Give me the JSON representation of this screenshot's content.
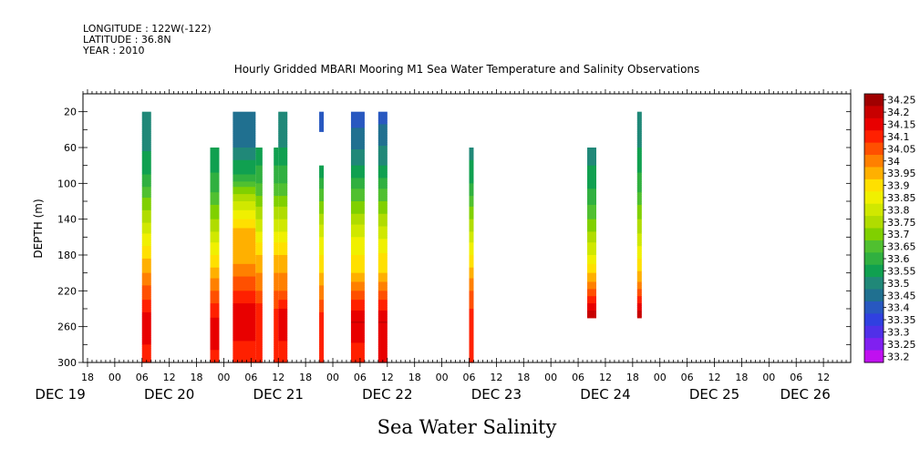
{
  "header": {
    "longitude": "LONGITUDE : 122W(-122)",
    "latitude": "LATITUDE : 36.8N",
    "year": "YEAR : 2010"
  },
  "chart_data": {
    "type": "heatmap",
    "title": "Hourly Gridded MBARI Mooring M1 Sea Water Temperature and Salinity Observations",
    "xlabel": "Sea Water Salinity",
    "ylabel": "DEPTH (m)",
    "x_hour_ticks": [
      {
        "hour": 18,
        "label": "18"
      },
      {
        "hour": 24,
        "label": "00"
      },
      {
        "hour": 30,
        "label": "06"
      },
      {
        "hour": 36,
        "label": "12"
      },
      {
        "hour": 42,
        "label": "18"
      },
      {
        "hour": 48,
        "label": "00"
      },
      {
        "hour": 54,
        "label": "06"
      },
      {
        "hour": 60,
        "label": "12"
      },
      {
        "hour": 66,
        "label": "18"
      },
      {
        "hour": 72,
        "label": "00"
      },
      {
        "hour": 78,
        "label": "06"
      },
      {
        "hour": 84,
        "label": "12"
      },
      {
        "hour": 90,
        "label": "18"
      },
      {
        "hour": 96,
        "label": "00"
      },
      {
        "hour": 102,
        "label": "06"
      },
      {
        "hour": 108,
        "label": "12"
      },
      {
        "hour": 114,
        "label": "18"
      },
      {
        "hour": 120,
        "label": "00"
      },
      {
        "hour": 126,
        "label": "06"
      },
      {
        "hour": 132,
        "label": "12"
      },
      {
        "hour": 138,
        "label": "18"
      },
      {
        "hour": 144,
        "label": "00"
      },
      {
        "hour": 150,
        "label": "06"
      },
      {
        "hour": 156,
        "label": "12"
      },
      {
        "hour": 162,
        "label": "18"
      },
      {
        "hour": 168,
        "label": "00"
      },
      {
        "hour": 174,
        "label": "06"
      },
      {
        "hour": 180,
        "label": "12"
      }
    ],
    "x_day_labels": [
      {
        "hour": 12,
        "label": "DEC 19"
      },
      {
        "hour": 36,
        "label": "DEC 20"
      },
      {
        "hour": 60,
        "label": "DEC 21"
      },
      {
        "hour": 84,
        "label": "DEC 22"
      },
      {
        "hour": 108,
        "label": "DEC 23"
      },
      {
        "hour": 132,
        "label": "DEC 24"
      },
      {
        "hour": 156,
        "label": "DEC 25"
      },
      {
        "hour": 176,
        "label": "DEC 26"
      }
    ],
    "xlim_hours": [
      17,
      186
    ],
    "y_ticks": [
      20,
      60,
      100,
      140,
      180,
      220,
      260,
      300
    ],
    "ylim": [
      300,
      0
    ],
    "colorbar": {
      "levels": [
        34.25,
        34.2,
        34.15,
        34.1,
        34.05,
        34,
        33.95,
        33.9,
        33.85,
        33.8,
        33.75,
        33.7,
        33.65,
        33.6,
        33.55,
        33.5,
        33.45,
        33.4,
        33.35,
        33.3,
        33.25,
        33.2
      ],
      "labels": [
        "34.25",
        "34.2",
        "34.15",
        "34.1",
        "34.05",
        "34",
        "33.95",
        "33.9",
        "33.85",
        "33.8",
        "33.75",
        "33.7",
        "33.65",
        "33.6",
        "33.55",
        "33.5",
        "33.45",
        "33.4",
        "33.35",
        "33.3",
        "33.25",
        "33.2"
      ],
      "colors": [
        "#a00000",
        "#c80000",
        "#e80000",
        "#ff2000",
        "#ff5000",
        "#ff8000",
        "#ffb000",
        "#ffe000",
        "#f0f000",
        "#d0e800",
        "#b0dc00",
        "#80d000",
        "#50c030",
        "#30b040",
        "#10a050",
        "#208878",
        "#207090",
        "#2858c0",
        "#3040e0",
        "#5030e8",
        "#8020f0",
        "#c010f0"
      ]
    },
    "columns": [
      {
        "start": 30.0,
        "end": 32.0,
        "segments": [
          {
            "top": 20,
            "bottom": 300,
            "profile": [
              [
                20,
                33.5
              ],
              [
                50,
                33.52
              ],
              [
                90,
                33.6
              ],
              [
                130,
                33.75
              ],
              [
                170,
                33.9
              ],
              [
                200,
                34.0
              ],
              [
                230,
                34.1
              ],
              [
                260,
                34.2
              ],
              [
                300,
                34.1
              ]
            ]
          }
        ]
      },
      {
        "start": 45.0,
        "end": 47.0,
        "segments": [
          {
            "top": 60,
            "bottom": 300,
            "profile": [
              [
                60,
                33.55
              ],
              [
                100,
                33.62
              ],
              [
                140,
                33.75
              ],
              [
                180,
                33.9
              ],
              [
                220,
                34.05
              ],
              [
                250,
                34.15
              ],
              [
                270,
                34.2
              ],
              [
                300,
                34.1
              ]
            ]
          }
        ]
      },
      {
        "start": 50.0,
        "end": 55.0,
        "segments": [
          {
            "top": 20,
            "bottom": 300,
            "profile": [
              [
                20,
                33.48
              ],
              [
                60,
                33.5
              ],
              [
                90,
                33.6
              ],
              [
                120,
                33.8
              ],
              [
                150,
                33.95
              ],
              [
                190,
                34.0
              ],
              [
                220,
                34.1
              ],
              [
                250,
                34.2
              ],
              [
                300,
                34.1
              ]
            ]
          }
        ]
      },
      {
        "start": 55.0,
        "end": 56.5,
        "segments": [
          {
            "top": 60,
            "bottom": 300,
            "profile": [
              [
                60,
                33.55
              ],
              [
                100,
                33.65
              ],
              [
                140,
                33.8
              ],
              [
                180,
                33.95
              ],
              [
                220,
                34.05
              ],
              [
                250,
                34.15
              ],
              [
                300,
                34.1
              ]
            ]
          }
        ]
      },
      {
        "start": 59.0,
        "end": 60.0,
        "segments": [
          {
            "top": 60,
            "bottom": 300,
            "profile": [
              [
                60,
                33.55
              ],
              [
                100,
                33.65
              ],
              [
                140,
                33.8
              ],
              [
                180,
                33.95
              ],
              [
                220,
                34.05
              ],
              [
                260,
                34.15
              ],
              [
                300,
                34.1
              ]
            ]
          }
        ]
      },
      {
        "start": 60.0,
        "end": 62.0,
        "segments": [
          {
            "top": 20,
            "bottom": 300,
            "profile": [
              [
                20,
                33.5
              ],
              [
                60,
                33.55
              ],
              [
                100,
                33.65
              ],
              [
                140,
                33.8
              ],
              [
                180,
                33.95
              ],
              [
                220,
                34.05
              ],
              [
                250,
                34.2
              ],
              [
                300,
                34.1
              ]
            ]
          }
        ]
      },
      {
        "start": 69.0,
        "end": 70.0,
        "segments": [
          {
            "top": 20,
            "bottom": 42,
            "profile": [
              [
                20,
                33.42
              ],
              [
                42,
                33.42
              ]
            ]
          },
          {
            "top": 80,
            "bottom": 300,
            "profile": [
              [
                80,
                33.55
              ],
              [
                120,
                33.7
              ],
              [
                160,
                33.85
              ],
              [
                200,
                33.95
              ],
              [
                230,
                34.05
              ],
              [
                260,
                34.15
              ],
              [
                300,
                34.1
              ]
            ]
          }
        ]
      },
      {
        "start": 76.0,
        "end": 79.0,
        "segments": [
          {
            "top": 20,
            "bottom": 300,
            "profile": [
              [
                20,
                33.42
              ],
              [
                50,
                33.47
              ],
              [
                80,
                33.55
              ],
              [
                120,
                33.7
              ],
              [
                160,
                33.85
              ],
              [
                200,
                33.95
              ],
              [
                230,
                34.1
              ],
              [
                255,
                34.2
              ],
              [
                300,
                34.1
              ]
            ]
          }
        ]
      },
      {
        "start": 82.0,
        "end": 84.0,
        "segments": [
          {
            "top": 20,
            "bottom": 300,
            "profile": [
              [
                20,
                33.42
              ],
              [
                50,
                33.48
              ],
              [
                80,
                33.55
              ],
              [
                120,
                33.7
              ],
              [
                170,
                33.88
              ],
              [
                200,
                33.95
              ],
              [
                230,
                34.1
              ],
              [
                255,
                34.2
              ],
              [
                300,
                34.15
              ]
            ]
          }
        ]
      },
      {
        "start": 102.0,
        "end": 103.0,
        "segments": [
          {
            "top": 60,
            "bottom": 300,
            "profile": [
              [
                60,
                33.52
              ],
              [
                100,
                33.6
              ],
              [
                140,
                33.75
              ],
              [
                180,
                33.9
              ],
              [
                220,
                34.05
              ],
              [
                260,
                34.15
              ],
              [
                300,
                34.1
              ]
            ]
          }
        ]
      },
      {
        "start": 128.0,
        "end": 130.0,
        "segments": [
          {
            "top": 60,
            "bottom": 250,
            "profile": [
              [
                60,
                33.52
              ],
              [
                100,
                33.58
              ],
              [
                140,
                33.7
              ],
              [
                180,
                33.85
              ],
              [
                210,
                34.0
              ],
              [
                235,
                34.15
              ],
              [
                250,
                34.25
              ]
            ]
          }
        ]
      },
      {
        "start": 139.0,
        "end": 140.0,
        "segments": [
          {
            "top": 20,
            "bottom": 250,
            "profile": [
              [
                20,
                33.5
              ],
              [
                60,
                33.55
              ],
              [
                100,
                33.62
              ],
              [
                140,
                33.75
              ],
              [
                180,
                33.88
              ],
              [
                210,
                34.0
              ],
              [
                235,
                34.15
              ],
              [
                250,
                34.25
              ]
            ]
          }
        ]
      }
    ]
  }
}
